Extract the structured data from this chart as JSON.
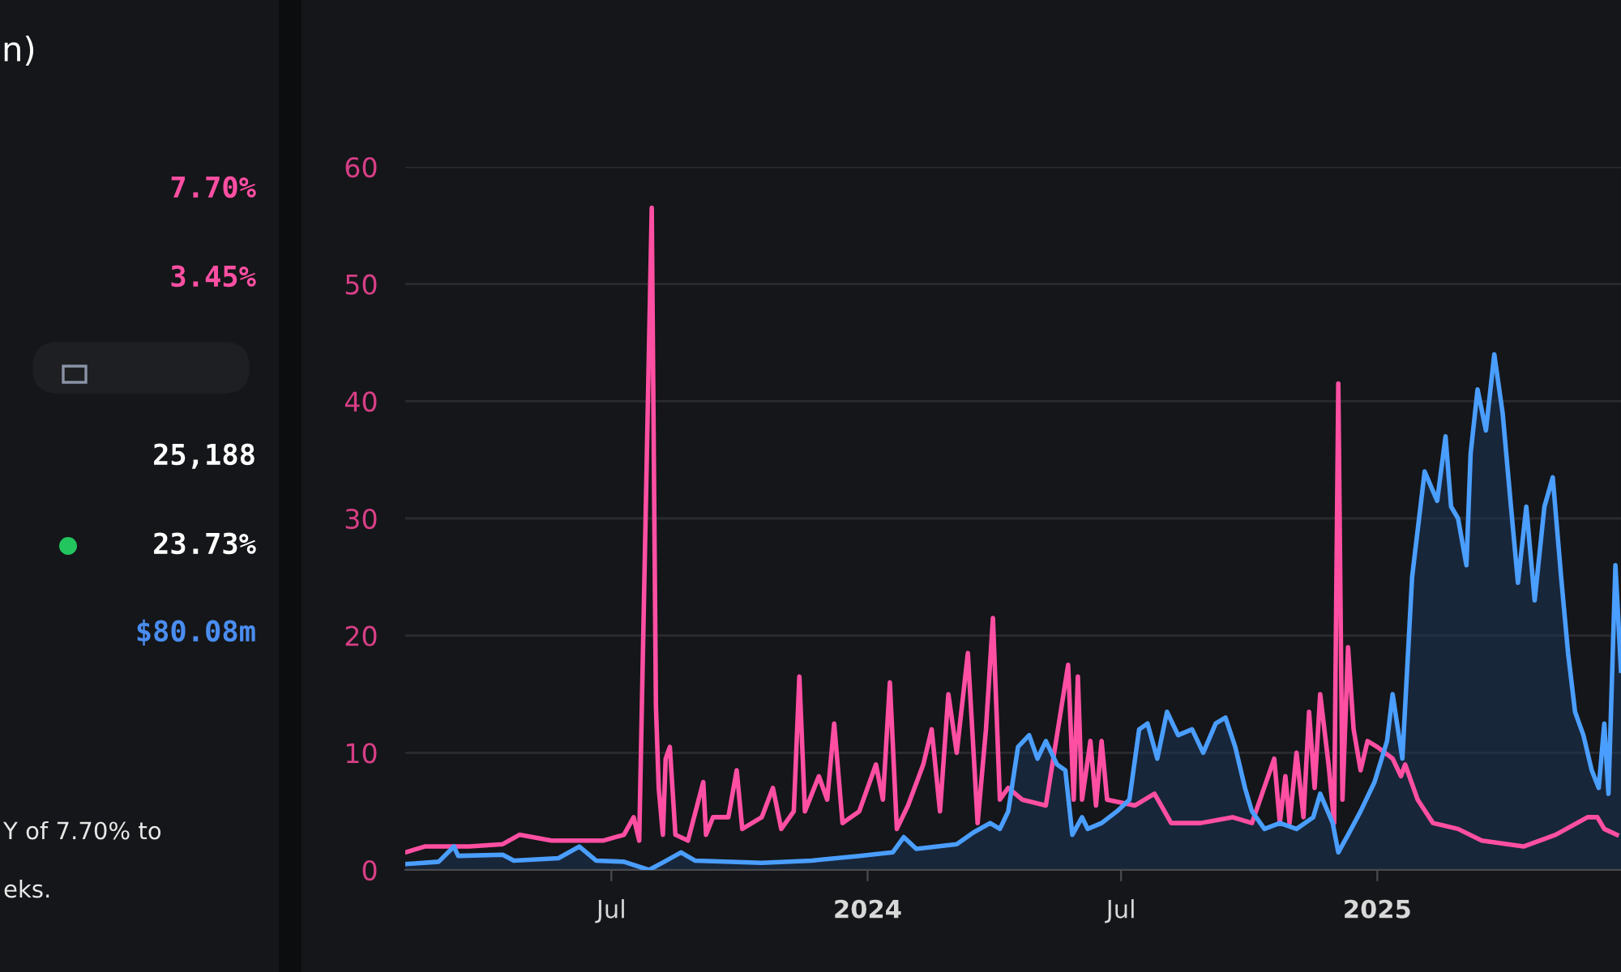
{
  "chart_data": [
    {
      "type": "other",
      "annotations": [
        "n)",
        "7.70%",
        "3.45%",
        "25,188",
        "23.73%",
        "$80.08m",
        "Y of 7.70% to",
        "eks."
      ]
    },
    {
      "type": "line",
      "xlim": [
        "2023-02-03",
        "2025-06-25"
      ],
      "xticks": [
        {
          "value": "2023-07-01",
          "label": "Jul"
        },
        {
          "value": "2024-01-01",
          "label": "2024"
        },
        {
          "value": "2024-07-01",
          "label": "Jul"
        },
        {
          "value": "2025-01-01",
          "label": "2025"
        }
      ],
      "ylim": [
        0,
        60
      ],
      "yticks": [
        0,
        10,
        20,
        30,
        40,
        50,
        60
      ],
      "grid": "y",
      "series": [
        {
          "type": "line",
          "color": "#ff4fa3",
          "x": [
            "2023-02-03",
            "2023-02-17",
            "2023-03-21",
            "2023-04-14",
            "2023-04-26",
            "2023-05-19",
            "2023-06-03",
            "2023-06-25",
            "2023-07-10",
            "2023-07-17",
            "2023-07-21",
            "2023-07-30",
            "2023-08-02",
            "2023-08-04",
            "2023-08-07",
            "2023-08-09",
            "2023-08-12",
            "2023-08-16",
            "2023-08-25",
            "2023-09-05",
            "2023-09-07",
            "2023-09-12",
            "2023-09-23",
            "2023-09-29",
            "2023-10-03",
            "2023-10-17",
            "2023-10-25",
            "2023-10-31",
            "2023-11-09",
            "2023-11-13",
            "2023-11-17",
            "2023-11-27",
            "2023-12-03",
            "2023-12-08",
            "2023-12-14",
            "2023-12-26",
            "2024-01-07",
            "2024-01-12",
            "2024-01-17",
            "2024-01-22",
            "2024-01-30",
            "2024-02-10",
            "2024-02-16",
            "2024-02-22",
            "2024-02-28",
            "2024-03-05",
            "2024-03-13",
            "2024-03-20",
            "2024-03-26",
            "2024-03-31",
            "2024-04-05",
            "2024-04-11",
            "2024-04-21",
            "2024-05-08",
            "2024-05-24",
            "2024-05-28",
            "2024-05-31",
            "2024-06-03",
            "2024-06-09",
            "2024-06-13",
            "2024-06-17",
            "2024-06-21",
            "2024-07-11",
            "2024-07-25",
            "2024-08-06",
            "2024-08-27",
            "2024-09-19",
            "2024-10-03",
            "2024-10-19",
            "2024-10-23",
            "2024-10-27",
            "2024-10-30",
            "2024-11-04",
            "2024-11-09",
            "2024-11-13",
            "2024-11-17",
            "2024-11-21",
            "2024-11-27",
            "2024-12-01",
            "2024-12-04",
            "2024-12-07",
            "2024-12-11",
            "2024-12-15",
            "2024-12-20",
            "2024-12-25",
            "2025-01-01",
            "2025-01-12",
            "2025-01-18",
            "2025-01-21",
            "2025-01-30",
            "2025-02-10",
            "2025-02-28",
            "2025-03-17",
            "2025-04-16",
            "2025-05-09",
            "2025-06-01",
            "2025-06-08",
            "2025-06-13",
            "2025-06-22"
          ],
          "values": [
            1.5,
            2,
            2,
            2.2,
            3,
            2.5,
            2.5,
            2.5,
            3,
            4.5,
            2.5,
            56.5,
            14,
            7,
            3,
            9.5,
            10.5,
            3,
            2.5,
            7.5,
            3,
            4.5,
            4.5,
            8.5,
            3.5,
            4.5,
            7,
            3.5,
            5,
            16.5,
            5,
            8,
            6,
            12.5,
            4,
            5,
            9,
            6,
            16,
            3.5,
            5.5,
            9,
            12,
            5,
            15,
            10,
            18.5,
            4,
            12,
            21.5,
            6,
            7,
            6,
            5.5,
            17.5,
            6,
            16.5,
            6,
            11,
            5.5,
            11,
            6,
            5.5,
            6.5,
            4,
            4,
            4.5,
            4,
            9.5,
            4,
            8,
            4,
            10,
            4.5,
            13.5,
            7,
            15,
            9,
            4,
            41.5,
            6,
            19,
            12,
            8.5,
            11,
            10.5,
            9.5,
            8,
            9,
            6,
            4,
            3.5,
            2.5,
            2,
            3,
            4.5,
            4.5,
            3.5,
            3
          ]
        },
        {
          "type": "area",
          "color": "#4a9eff",
          "x": [
            "2023-02-03",
            "2023-02-27",
            "2023-03-10",
            "2023-03-13",
            "2023-04-14",
            "2023-04-22",
            "2023-05-24",
            "2023-06-08",
            "2023-06-20",
            "2023-07-10",
            "2023-07-28",
            "2023-08-08",
            "2023-08-20",
            "2023-08-30",
            "2023-10-17",
            "2023-11-22",
            "2023-12-26",
            "2024-01-19",
            "2024-01-27",
            "2024-02-05",
            "2024-03-05",
            "2024-03-17",
            "2024-03-29",
            "2024-04-05",
            "2024-04-11",
            "2024-04-18",
            "2024-04-26",
            "2024-05-02",
            "2024-05-08",
            "2024-05-16",
            "2024-05-22",
            "2024-05-27",
            "2024-06-03",
            "2024-06-07",
            "2024-06-17",
            "2024-06-28",
            "2024-07-07",
            "2024-07-14",
            "2024-07-20",
            "2024-07-27",
            "2024-08-03",
            "2024-08-11",
            "2024-08-21",
            "2024-08-29",
            "2024-09-07",
            "2024-09-14",
            "2024-09-21",
            "2024-09-28",
            "2024-10-03",
            "2024-10-12",
            "2024-10-23",
            "2024-11-04",
            "2024-11-16",
            "2024-11-21",
            "2024-11-30",
            "2024-12-04",
            "2024-12-11",
            "2024-12-20",
            "2024-12-30",
            "2025-01-08",
            "2025-01-12",
            "2025-01-19",
            "2025-01-26",
            "2025-02-04",
            "2025-02-13",
            "2025-02-19",
            "2025-02-23",
            "2025-02-28",
            "2025-03-06",
            "2025-03-09",
            "2025-03-14",
            "2025-03-20",
            "2025-03-26",
            "2025-04-01",
            "2025-04-07",
            "2025-04-12",
            "2025-04-18",
            "2025-04-24",
            "2025-05-01",
            "2025-05-07",
            "2025-05-13",
            "2025-05-18",
            "2025-05-23",
            "2025-05-29",
            "2025-06-04",
            "2025-06-09",
            "2025-06-13",
            "2025-06-16",
            "2025-06-21",
            "2025-06-25"
          ],
          "values": [
            0.5,
            0.7,
            2,
            1.2,
            1.3,
            0.8,
            1,
            2,
            0.8,
            0.7,
            0,
            0.7,
            1.5,
            0.8,
            0.6,
            0.8,
            1.2,
            1.5,
            2.8,
            1.8,
            2.2,
            3.2,
            4,
            3.5,
            5,
            10.5,
            11.5,
            9.5,
            11,
            9,
            8.5,
            3,
            4.5,
            3.5,
            4,
            5,
            6,
            12,
            12.5,
            9.5,
            13.5,
            11.5,
            12,
            10,
            12.5,
            13,
            10.5,
            7,
            5,
            3.5,
            4,
            3.5,
            4.5,
            6.5,
            4,
            1.5,
            3,
            5,
            7.5,
            11,
            15,
            9.5,
            25,
            34,
            31.5,
            37,
            31,
            30,
            26,
            35.5,
            41,
            37.5,
            44,
            39,
            31,
            24.5,
            31,
            23,
            31,
            33.5,
            25,
            18.5,
            13.5,
            11.5,
            8.5,
            7,
            12.5,
            6.5,
            26,
            17
          ]
        }
      ]
    }
  ]
}
